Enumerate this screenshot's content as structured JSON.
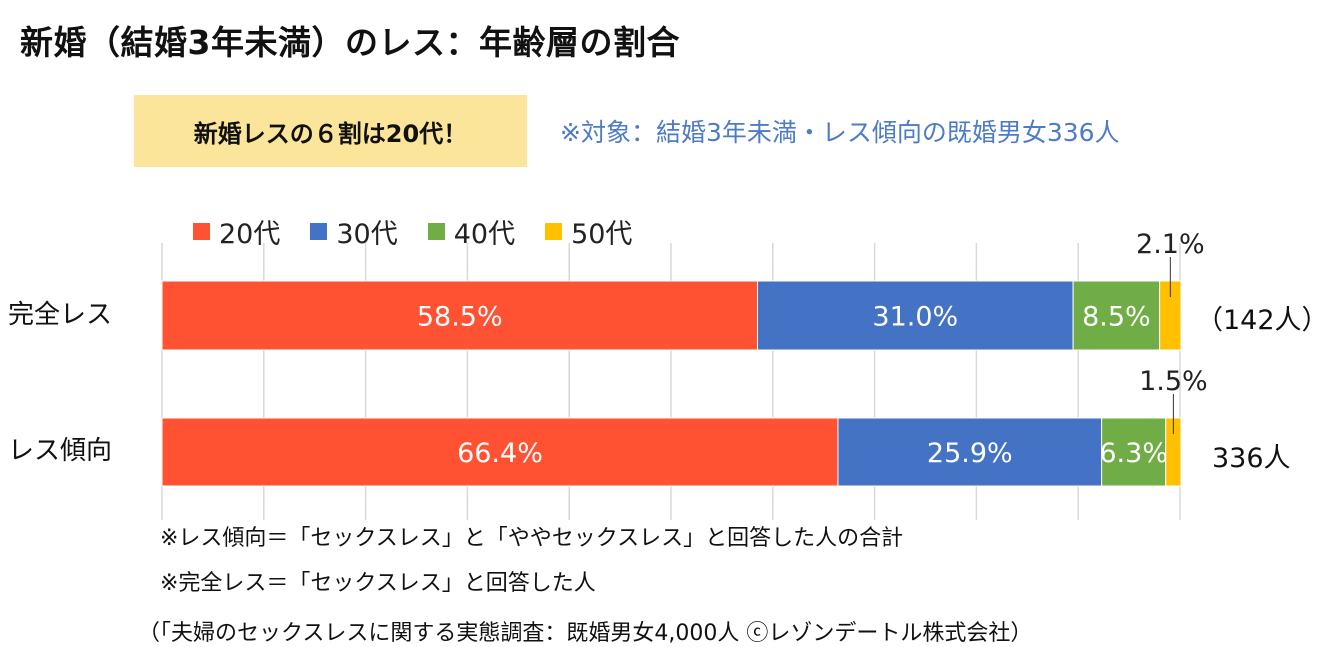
{
  "title": "新婚（結婚3年未満）のレス：年齢層の割合",
  "highlight": "新婚レスの６割は20代！",
  "target_note": "※対象：結婚3年未満・レス傾向の既婚男女336人",
  "colors": {
    "20s": "#ff5232",
    "30s": "#4472c4",
    "40s": "#70ad47",
    "50s": "#ffc000",
    "highlight_bg": "#fbe59a",
    "target_text": "#4e7bc6",
    "grid": "#d9d9d9"
  },
  "notes": {
    "note1": "※レス傾向＝「セックスレス」と「ややセックスレス」と回答した人の合計",
    "note2": "※完全レス＝「セックスレス」と回答した人",
    "source": "（「夫婦のセックスレスに関する実態調査：既婚男女4,000人 ⓒレゾンデートル株式会社）"
  },
  "chart_data": {
    "type": "bar",
    "orientation": "horizontal",
    "stacked": true,
    "xlim": [
      0,
      100
    ],
    "grid": true,
    "legend_position": "top-left",
    "categories": [
      "完全レス",
      "レス傾向"
    ],
    "totals": [
      "（142人）",
      "336人"
    ],
    "series": [
      {
        "name": "20代",
        "color_key": "20s",
        "values": [
          58.5,
          66.4
        ],
        "labels": [
          "58.5%",
          "66.4%"
        ]
      },
      {
        "name": "30代",
        "color_key": "30s",
        "values": [
          31.0,
          25.9
        ],
        "labels": [
          "31.0%",
          "25.9%"
        ]
      },
      {
        "name": "40代",
        "color_key": "40s",
        "values": [
          8.5,
          6.3
        ],
        "labels": [
          "8.5%",
          "6.3%"
        ]
      },
      {
        "name": "50代",
        "color_key": "50s",
        "values": [
          2.1,
          1.5
        ],
        "labels": [
          "2.1%",
          "1.5%"
        ]
      }
    ]
  }
}
